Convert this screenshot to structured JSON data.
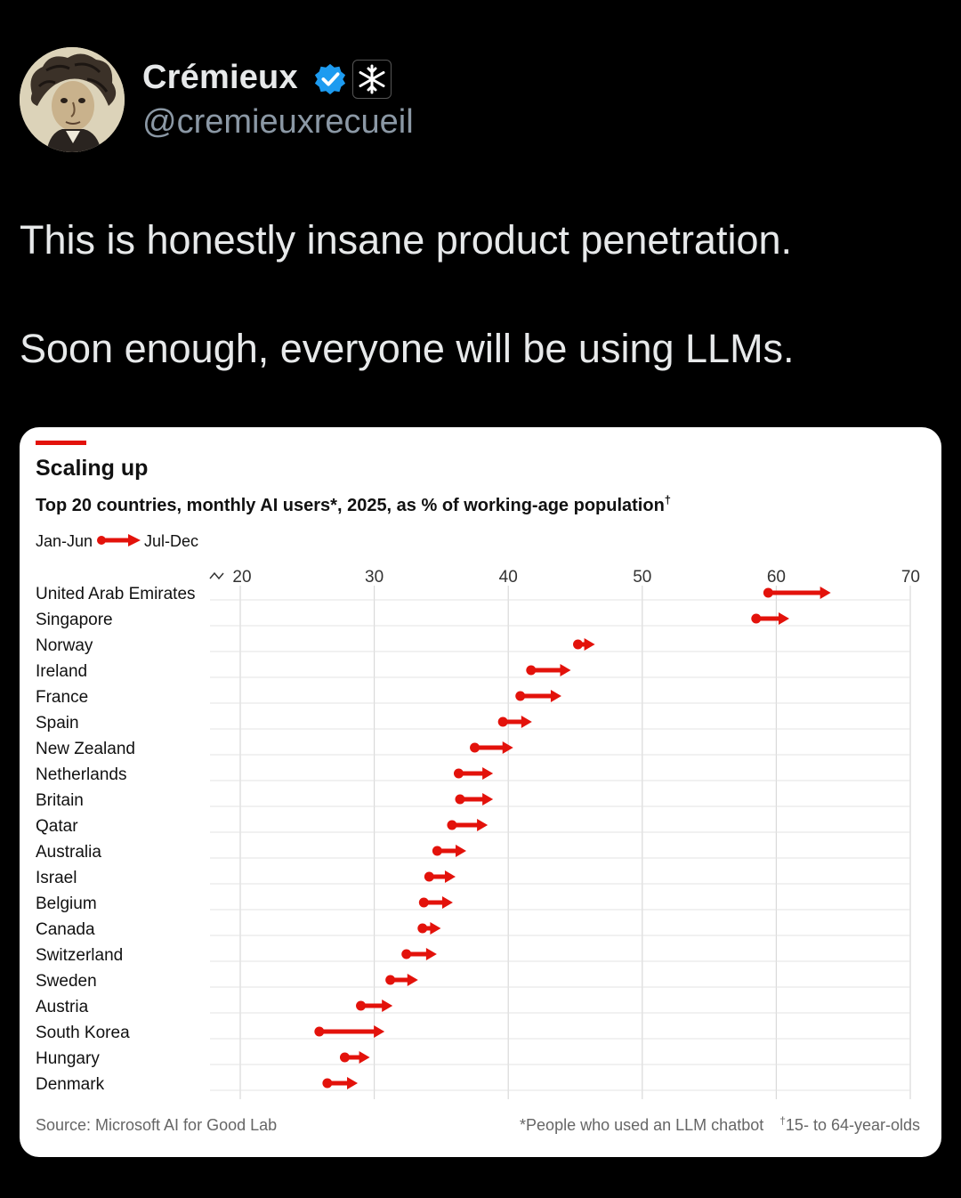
{
  "tweet": {
    "author_name": "Crémieux",
    "author_handle": "@cremieuxrecueil",
    "text_lines": [
      "This is honestly insane product penetration.",
      "Soon enough, everyone will be using LLMs."
    ],
    "icons": {
      "verified": "verified-badge-icon",
      "affiliate": "snowflake-affiliate-icon"
    },
    "colors": {
      "background": "#000000",
      "text": "#e7e9ea",
      "handle": "#8b98a5",
      "verified": "#1d9bf0"
    }
  },
  "chart_data": {
    "type": "dumbbell-arrow",
    "title": "Scaling up",
    "subtitle": "Top 20 countries, monthly AI users*, 2025, as % of working-age population",
    "subtitle_mark": "†",
    "legend": {
      "from": "Jan-Jun",
      "to": "Jul-Dec"
    },
    "xlim": [
      20,
      70
    ],
    "xticks": [
      20,
      30,
      40,
      50,
      60,
      70
    ],
    "axis_break": true,
    "accent_color": "#e3120b",
    "categories": [
      "United Arab Emirates",
      "Singapore",
      "Norway",
      "Ireland",
      "France",
      "Spain",
      "New Zealand",
      "Netherlands",
      "Britain",
      "Qatar",
      "Australia",
      "Israel",
      "Belgium",
      "Canada",
      "Switzerland",
      "Sweden",
      "Austria",
      "South Korea",
      "Hungary",
      "Denmark"
    ],
    "series": [
      {
        "name": "Jan-Jun",
        "values": [
          59.4,
          58.5,
          45.2,
          41.7,
          40.9,
          39.6,
          37.5,
          36.3,
          36.4,
          35.8,
          34.7,
          34.1,
          33.7,
          33.6,
          32.4,
          31.2,
          29.0,
          25.9,
          27.8,
          26.5
        ]
      },
      {
        "name": "Jul-Dec",
        "values": [
          64.0,
          60.9,
          46.4,
          44.6,
          43.9,
          41.7,
          40.3,
          38.8,
          38.8,
          38.4,
          36.8,
          36.0,
          35.8,
          34.9,
          34.6,
          33.2,
          31.3,
          30.7,
          29.6,
          28.7
        ]
      }
    ],
    "source": "Source: Microsoft AI for Good Lab",
    "footnote1": "*People who used an LLM chatbot",
    "footnote2_mark": "†",
    "footnote2": "15- to 64-year-olds"
  }
}
